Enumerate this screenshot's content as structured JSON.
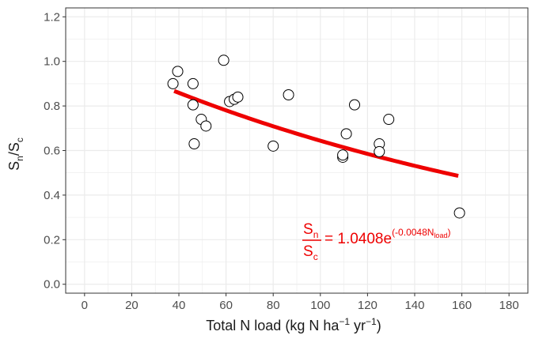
{
  "chart_data": {
    "type": "scatter",
    "xlabel": {
      "main": "Total N load (kg N ha",
      "sup1": "−1",
      "mid": " yr",
      "sup2": "−1",
      "end": ")"
    },
    "ylabel": {
      "s1": "S",
      "sub1": "n",
      "slash": "/",
      "s2": "S",
      "sub2": "c"
    },
    "xlim": [
      -8,
      188
    ],
    "ylim": [
      -0.04,
      1.24
    ],
    "x_ticks": [
      0,
      20,
      40,
      60,
      80,
      100,
      120,
      140,
      160,
      180
    ],
    "x_tick_labels": [
      "0",
      "20",
      "40",
      "60",
      "80",
      "100",
      "120",
      "140",
      "160",
      "180"
    ],
    "y_ticks": [
      0.0,
      0.2,
      0.4,
      0.6,
      0.8,
      1.0,
      1.2
    ],
    "y_tick_labels": [
      "0.0",
      "0.2",
      "0.4",
      "0.6",
      "0.8",
      "1.0",
      "1.2"
    ],
    "grid": true,
    "points": [
      {
        "x": 37.5,
        "y": 0.9
      },
      {
        "x": 39.5,
        "y": 0.955
      },
      {
        "x": 46,
        "y": 0.9
      },
      {
        "x": 46,
        "y": 0.805
      },
      {
        "x": 46.5,
        "y": 0.63
      },
      {
        "x": 49.5,
        "y": 0.74
      },
      {
        "x": 51.5,
        "y": 0.71
      },
      {
        "x": 59,
        "y": 1.005
      },
      {
        "x": 61.5,
        "y": 0.82
      },
      {
        "x": 63.5,
        "y": 0.83
      },
      {
        "x": 65,
        "y": 0.84
      },
      {
        "x": 80,
        "y": 0.62
      },
      {
        "x": 86.5,
        "y": 0.85
      },
      {
        "x": 109.5,
        "y": 0.57
      },
      {
        "x": 109.5,
        "y": 0.58
      },
      {
        "x": 111,
        "y": 0.675
      },
      {
        "x": 114.5,
        "y": 0.805
      },
      {
        "x": 125,
        "y": 0.63
      },
      {
        "x": 125,
        "y": 0.595
      },
      {
        "x": 129,
        "y": 0.74
      },
      {
        "x": 159,
        "y": 0.32
      }
    ],
    "fit": {
      "a": 1.0408,
      "b": -0.0048,
      "x_range": [
        38,
        158.5
      ],
      "color": "#ee0000"
    },
    "equation": {
      "num": "S",
      "num_sub": "n",
      "den": "S",
      "den_sub": "c",
      "body": "= 1.0408e",
      "exp": "(-0.0048N",
      "exp_sub": "load",
      "exp_close": ")"
    },
    "colors": {
      "point_fill": "#ffffff",
      "point_stroke": "#000000",
      "grid": "#ebebeb",
      "panel_border": "#333333",
      "fit": "#ee0000"
    }
  }
}
